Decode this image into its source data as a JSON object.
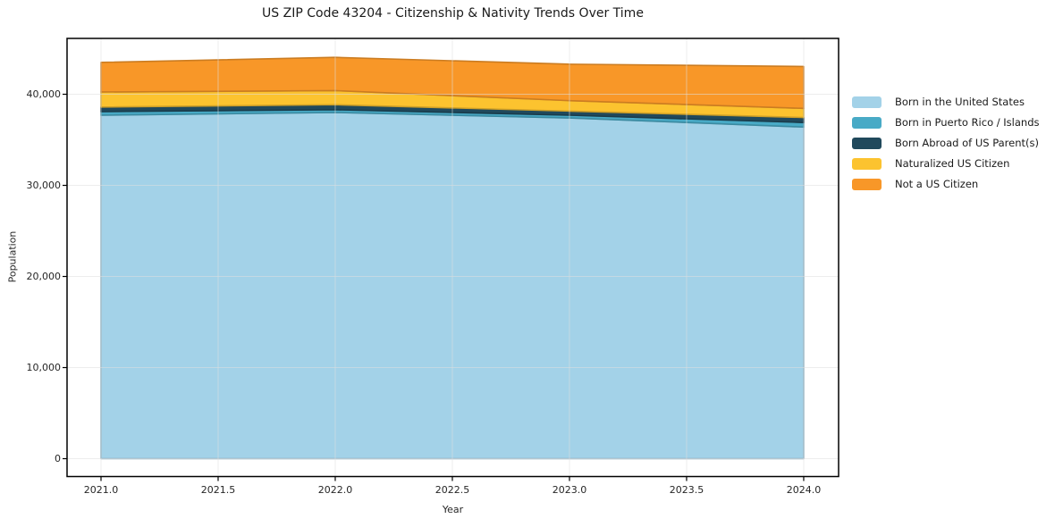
{
  "chart_data": {
    "type": "area",
    "stacked": true,
    "title": "US ZIP Code 43204 - Citizenship & Nativity Trends Over Time",
    "xlabel": "Year",
    "ylabel": "Population",
    "x": [
      2021,
      2022,
      2023,
      2024
    ],
    "series": [
      {
        "name": "Born in the United States",
        "color": "#a3d2e8",
        "values": [
          37700,
          38000,
          37400,
          36400
        ]
      },
      {
        "name": "Born in Puerto Rico / Islands",
        "color": "#48aac6",
        "values": [
          400,
          300,
          300,
          500
        ]
      },
      {
        "name": "Born Abroad of US Parent(s)",
        "color": "#20495c",
        "values": [
          500,
          550,
          450,
          550
        ]
      },
      {
        "name": "Naturalized US Citizen",
        "color": "#fcc32f",
        "values": [
          1650,
          1550,
          1150,
          1000
        ]
      },
      {
        "name": "Not a US Citizen",
        "color": "#f89728",
        "values": [
          3250,
          3650,
          4000,
          4600
        ]
      }
    ],
    "xlim": [
      2020.855,
      2024.149
    ],
    "ylim": [
      -1960,
      46130
    ],
    "x_ticks": [
      2021.0,
      2021.5,
      2022.0,
      2022.5,
      2023.0,
      2023.5,
      2024.0
    ],
    "x_tick_labels": [
      "2021.0",
      "2021.5",
      "2022.0",
      "2022.5",
      "2023.0",
      "2023.5",
      "2024.0"
    ],
    "y_ticks": [
      0,
      10000,
      20000,
      30000,
      40000
    ],
    "y_tick_labels": [
      "0",
      "10,000",
      "20,000",
      "30,000",
      "40,000"
    ],
    "grid": true,
    "legend_position": "right-outside",
    "spine_color": "#000000",
    "background_color": "#ffffff"
  }
}
